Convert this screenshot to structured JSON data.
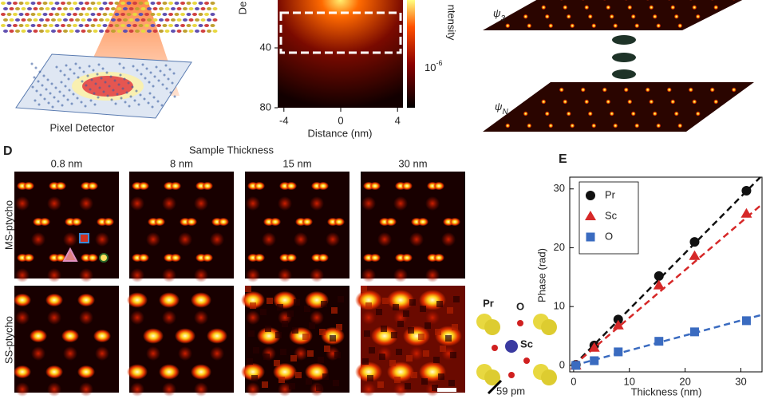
{
  "panel_top_left": {
    "detector_label": "Pixel Detector"
  },
  "panel_top_mid": {
    "y_label": "De",
    "y_ticks": [
      40,
      80
    ],
    "x_ticks": [
      -4,
      0,
      4
    ],
    "x_label": "Distance (nm)",
    "colorbar_label": "ntensity",
    "colorbar_tick": {
      "base": "10",
      "sup": "-6"
    }
  },
  "panel_top_right": {
    "layers": [
      {
        "base": "ψ",
        "sub": "3"
      },
      {
        "base": "ψ",
        "sub": "N"
      }
    ]
  },
  "panel_d": {
    "letter": "D",
    "title": "Sample Thickness",
    "columns": [
      "0.8 nm",
      "8 nm",
      "15 nm",
      "30 nm"
    ],
    "rows": [
      "MS-ptycho",
      "SS-ptycho"
    ],
    "atom_labels": [
      "Pr",
      "O",
      "Sc"
    ],
    "scale_label": "59 pm"
  },
  "chart_data": {
    "type": "scatter",
    "letter": "E",
    "y_label": "Phase (rad)",
    "x_label": "Thickness (nm)",
    "xlim": [
      -0.7,
      33.8
    ],
    "ylim": [
      -1.1,
      32
    ],
    "xticks": [
      0,
      10,
      20,
      30
    ],
    "yticks": [
      0,
      10,
      20,
      30
    ],
    "x": [
      0.4,
      3.7,
      8,
      15.3,
      21.7,
      31
    ],
    "series": [
      {
        "name": "Pr",
        "color": "#111111",
        "marker": "circle",
        "values": [
          0.1,
          3.4,
          7.8,
          15.2,
          21.0,
          29.7
        ],
        "fit": {
          "x": [
            0,
            33.5
          ],
          "values": [
            0,
            32
          ]
        }
      },
      {
        "name": "Sc",
        "color": "#d62828",
        "marker": "triangle",
        "values": [
          0,
          3.0,
          6.8,
          13.6,
          18.6,
          25.8
        ],
        "fit": {
          "x": [
            0,
            33.8
          ],
          "values": [
            0,
            27.4
          ]
        }
      },
      {
        "name": "O",
        "color": "#3a6bc0",
        "marker": "square",
        "values": [
          0,
          0.8,
          2.3,
          4.1,
          5.7,
          7.6
        ],
        "fit": {
          "x": [
            0,
            33.8
          ],
          "values": [
            0,
            8.6
          ]
        }
      }
    ]
  }
}
